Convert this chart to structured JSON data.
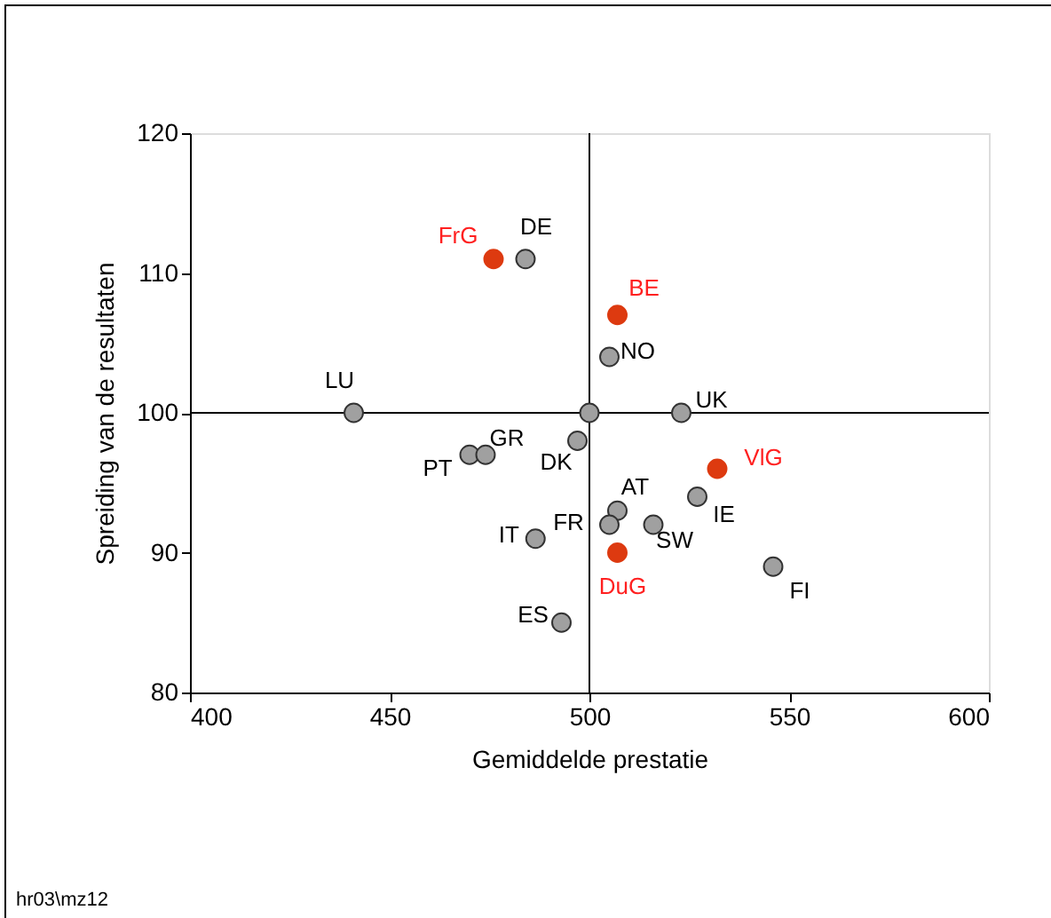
{
  "chart_data": {
    "type": "scatter",
    "xlabel": "Gemiddelde prestatie",
    "ylabel": "Spreiding van de resultaten",
    "xlim": [
      400,
      600
    ],
    "xticks": [
      400,
      450,
      500,
      550,
      600
    ],
    "ylim": [
      80,
      120
    ],
    "yticks": [
      80,
      90,
      100,
      110,
      120
    ],
    "grid": false,
    "marker": "circle",
    "series": [
      {
        "color": "#a0a0a0",
        "x": [
          484,
          505,
          441,
          500,
          523,
          470,
          474,
          497,
          527,
          507,
          505,
          516,
          486.5,
          546,
          493
        ],
        "values": [
          111,
          104,
          100,
          100,
          100,
          97,
          97,
          98,
          94,
          93,
          92,
          92,
          91,
          89,
          85
        ]
      },
      {
        "color": "#dd3a10",
        "x": [
          476,
          507,
          532,
          507
        ],
        "values": [
          111,
          107,
          96,
          90
        ]
      }
    ],
    "ref_lines": [
      {
        "axis": "x",
        "value": 500,
        "label": null
      },
      {
        "axis": "y",
        "value": 100,
        "label": null
      }
    ],
    "annotations": [
      {
        "text": "FrG",
        "x": 476,
        "y": 111
      },
      {
        "text": "DE",
        "x": 484,
        "y": 111
      },
      {
        "text": "BE",
        "x": 507,
        "y": 107
      },
      {
        "text": "NO",
        "x": 505,
        "y": 104
      },
      {
        "text": "LU",
        "x": 441,
        "y": 100
      },
      {
        "text": "UK",
        "x": 523,
        "y": 100
      },
      {
        "text": "PT",
        "x": 470,
        "y": 97
      },
      {
        "text": "GR",
        "x": 474,
        "y": 97
      },
      {
        "text": "DK",
        "x": 497,
        "y": 98
      },
      {
        "text": "VlG",
        "x": 532,
        "y": 96
      },
      {
        "text": "IE",
        "x": 527,
        "y": 94
      },
      {
        "text": "AT",
        "x": 507,
        "y": 93
      },
      {
        "text": "FR",
        "x": 505,
        "y": 92
      },
      {
        "text": "SW",
        "x": 516,
        "y": 92
      },
      {
        "text": "IT",
        "x": 486.5,
        "y": 91
      },
      {
        "text": "DuG",
        "x": 507,
        "y": 90
      },
      {
        "text": "FI",
        "x": 546,
        "y": 89
      },
      {
        "text": "ES",
        "x": 493,
        "y": 85
      },
      "hr03\\mz12"
    ]
  }
}
